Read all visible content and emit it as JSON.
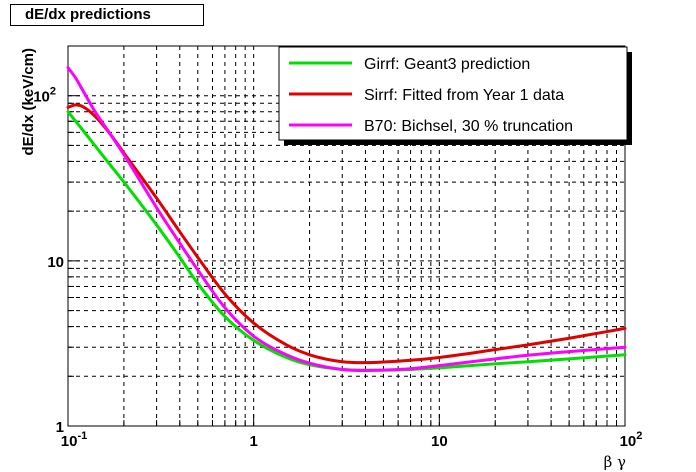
{
  "chart_data": {
    "type": "line",
    "title": "dE/dx predictions",
    "xlabel": "β γ",
    "ylabel": "dE/dx (keV/cm)",
    "x_scale": "log",
    "y_scale": "log",
    "xlim": [
      0.1,
      100
    ],
    "ylim": [
      1,
      200
    ],
    "grid": true,
    "legend_position": "top-right",
    "x_ticks": [
      {
        "value": 0.1,
        "base": "10",
        "exp": "-1"
      },
      {
        "value": 1,
        "base": "1",
        "exp": ""
      },
      {
        "value": 10,
        "base": "10",
        "exp": ""
      },
      {
        "value": 100,
        "base": "10",
        "exp": "2"
      }
    ],
    "y_ticks": [
      {
        "value": 1,
        "base": "1",
        "exp": ""
      },
      {
        "value": 10,
        "base": "10",
        "exp": ""
      },
      {
        "value": 100,
        "base": "10",
        "exp": "2"
      }
    ],
    "series": [
      {
        "name": "Girrf: Geant3 prediction",
        "color": "#00e000",
        "x": [
          0.1,
          0.12,
          0.15,
          0.2,
          0.3,
          0.4,
          0.5,
          0.7,
          1,
          1.5,
          2,
          3,
          4,
          5,
          7,
          10,
          20,
          30,
          50,
          100
        ],
        "y": [
          80,
          62,
          45,
          30,
          16.5,
          10.5,
          7.3,
          4.6,
          3.3,
          2.6,
          2.35,
          2.2,
          2.18,
          2.18,
          2.2,
          2.25,
          2.38,
          2.45,
          2.55,
          2.7
        ]
      },
      {
        "name": "Sirrf: Fitted from Year 1 data",
        "color": "#e00000",
        "x": [
          0.1,
          0.11,
          0.12,
          0.14,
          0.17,
          0.2,
          0.3,
          0.4,
          0.5,
          0.7,
          1,
          1.5,
          2,
          3,
          4,
          5,
          7,
          10,
          20,
          30,
          50,
          100
        ],
        "y": [
          85,
          88,
          86,
          75,
          58,
          45,
          24,
          15,
          10.5,
          6.3,
          4.2,
          3.1,
          2.7,
          2.45,
          2.42,
          2.44,
          2.5,
          2.6,
          2.9,
          3.1,
          3.4,
          3.9
        ]
      },
      {
        "name": "B70: Bichsel, 30 % truncation",
        "color": "#ff00ff",
        "x": [
          0.1,
          0.11,
          0.12,
          0.14,
          0.17,
          0.2,
          0.3,
          0.4,
          0.5,
          0.7,
          1,
          1.5,
          2,
          3,
          4,
          5,
          7,
          10,
          20,
          30,
          50,
          100
        ],
        "y": [
          148,
          128,
          108,
          80,
          58,
          44,
          21,
          12.8,
          8.8,
          5.2,
          3.5,
          2.7,
          2.4,
          2.2,
          2.17,
          2.18,
          2.22,
          2.32,
          2.55,
          2.68,
          2.82,
          3.0
        ]
      }
    ]
  }
}
